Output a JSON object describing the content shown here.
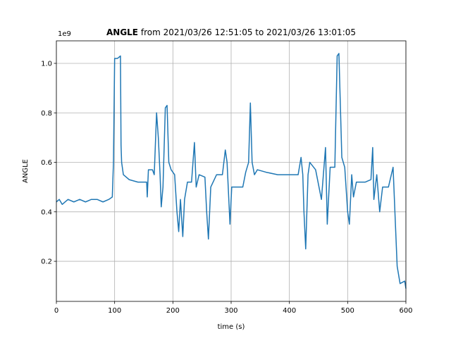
{
  "chart_data": {
    "type": "line",
    "title_bold": "ANGLE",
    "title": "from 2021/03/26 12:51:05 to 2021/03/26 13:01:05",
    "xlabel": "time (s)",
    "ylabel": "ANGLE",
    "y_offset_label": "1e9",
    "xlim": [
      0,
      600
    ],
    "ylim": [
      0.038,
      1.091
    ],
    "xticks": [
      0,
      100,
      200,
      300,
      400,
      500,
      600
    ],
    "yticks": [
      0.2,
      0.4,
      0.6,
      0.8,
      {
        "value": 1.0,
        "label": "1.0"
      }
    ],
    "grid": true,
    "x": [
      0,
      5,
      10,
      20,
      30,
      40,
      50,
      60,
      70,
      80,
      90,
      96,
      98,
      100,
      105,
      110,
      111,
      112,
      115,
      125,
      140,
      150,
      155,
      156,
      158,
      165,
      168,
      172,
      175,
      178,
      180,
      183,
      187,
      190,
      193,
      197,
      203,
      207,
      210,
      213,
      217,
      220,
      225,
      232,
      237,
      240,
      245,
      255,
      258,
      261,
      265,
      275,
      285,
      290,
      293,
      296,
      298,
      301,
      320,
      325,
      330,
      333,
      336,
      340,
      345,
      360,
      380,
      400,
      415,
      420,
      423,
      425,
      428,
      432,
      435,
      445,
      455,
      460,
      462,
      465,
      470,
      478,
      482,
      485,
      490,
      495,
      500,
      503,
      507,
      510,
      515,
      530,
      540,
      543,
      545,
      550,
      555,
      560,
      570,
      578,
      582,
      585,
      590,
      598,
      600
    ],
    "series": [
      {
        "name": "ANGLE",
        "color": "#1f77b4",
        "values": [
          0.44,
          0.45,
          0.43,
          0.45,
          0.44,
          0.45,
          0.44,
          0.45,
          0.45,
          0.44,
          0.45,
          0.46,
          0.6,
          1.02,
          1.02,
          1.03,
          0.67,
          0.6,
          0.55,
          0.53,
          0.52,
          0.52,
          0.52,
          0.46,
          0.57,
          0.57,
          0.55,
          0.8,
          0.7,
          0.55,
          0.42,
          0.5,
          0.82,
          0.83,
          0.6,
          0.57,
          0.55,
          0.4,
          0.32,
          0.45,
          0.3,
          0.45,
          0.52,
          0.52,
          0.68,
          0.5,
          0.55,
          0.54,
          0.4,
          0.29,
          0.5,
          0.55,
          0.55,
          0.65,
          0.6,
          0.45,
          0.35,
          0.5,
          0.5,
          0.56,
          0.6,
          0.84,
          0.6,
          0.55,
          0.57,
          0.56,
          0.55,
          0.55,
          0.55,
          0.62,
          0.55,
          0.4,
          0.25,
          0.55,
          0.6,
          0.57,
          0.45,
          0.6,
          0.66,
          0.35,
          0.58,
          0.58,
          1.03,
          1.04,
          0.62,
          0.58,
          0.4,
          0.35,
          0.55,
          0.46,
          0.52,
          0.52,
          0.53,
          0.66,
          0.45,
          0.55,
          0.4,
          0.5,
          0.5,
          0.58,
          0.35,
          0.18,
          0.11,
          0.12,
          0.09
        ]
      }
    ]
  }
}
